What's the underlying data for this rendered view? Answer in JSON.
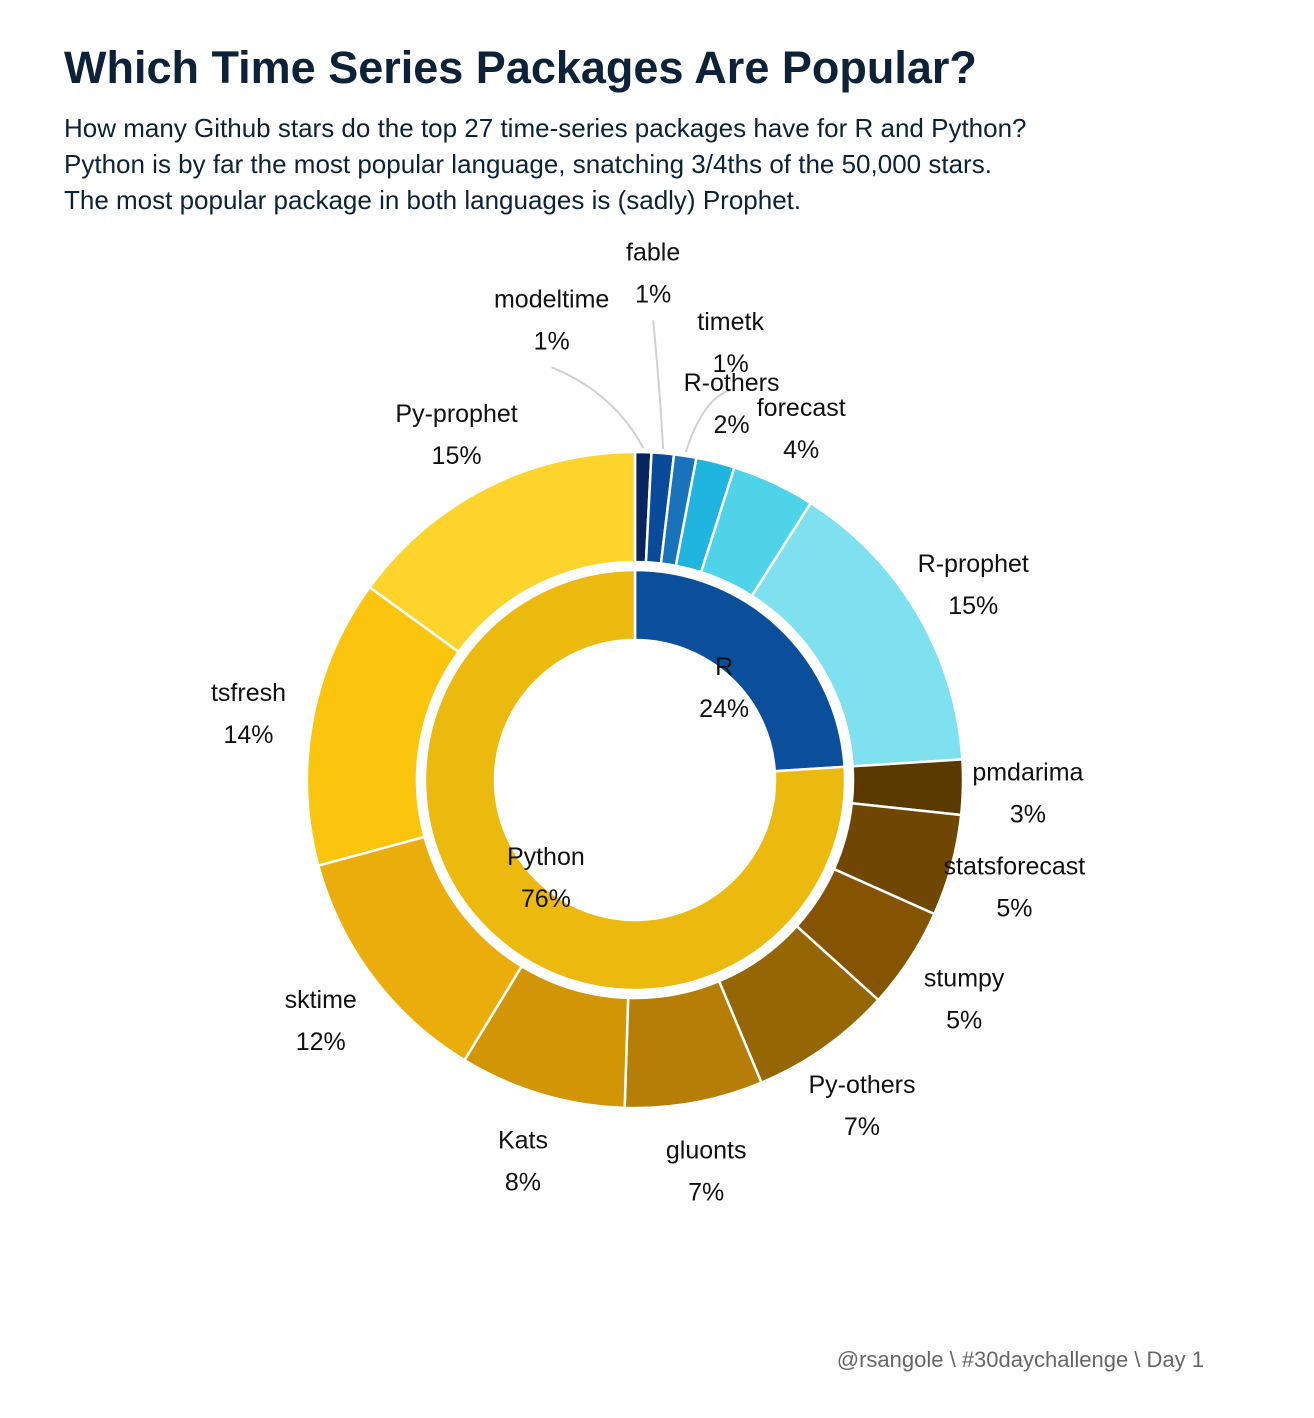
{
  "title": "Which Time Series Packages Are Popular?",
  "subtitle": [
    "How many Github stars do the top 27 time-series packages have for R and Python?",
    "Python is by far the most popular language, snatching 3/4ths of the 50,000 stars.",
    "The most popular package in both languages is (sadly) Prophet."
  ],
  "caption": "@rsangole \\ #30daychallenge \\ Day 1",
  "chart_data": {
    "type": "pie",
    "subtype": "nested donut (sunburst)",
    "inner_ring": [
      {
        "label": "R",
        "pct_label": "24%",
        "value": 24,
        "color": "#0b4f9c"
      },
      {
        "label": "Python",
        "pct_label": "76%",
        "value": 76,
        "color": "#ecb90f"
      }
    ],
    "outer_ring": [
      {
        "label": "modeltime",
        "pct_label": "1%",
        "value": 0.8,
        "parent": "R",
        "color": "#08245e"
      },
      {
        "label": "fable",
        "pct_label": "1%",
        "value": 1.1,
        "parent": "R",
        "color": "#0a4a9a"
      },
      {
        "label": "timetk",
        "pct_label": "1%",
        "value": 1.1,
        "parent": "R",
        "color": "#1873bb"
      },
      {
        "label": "R-others",
        "pct_label": "2%",
        "value": 1.9,
        "parent": "R",
        "color": "#1fb5de"
      },
      {
        "label": "forecast",
        "pct_label": "4%",
        "value": 4.1,
        "parent": "R",
        "color": "#4ed3e8"
      },
      {
        "label": "R-prophet",
        "pct_label": "15%",
        "value": 15.0,
        "parent": "R",
        "color": "#7fe0ef"
      },
      {
        "label": "pmdarima",
        "pct_label": "3%",
        "value": 2.7,
        "parent": "Python",
        "color": "#5b3a02"
      },
      {
        "label": "statsforecast",
        "pct_label": "5%",
        "value": 5.0,
        "parent": "Python",
        "color": "#704702"
      },
      {
        "label": "stumpy",
        "pct_label": "5%",
        "value": 5.0,
        "parent": "Python",
        "color": "#845403"
      },
      {
        "label": "Py-others",
        "pct_label": "7%",
        "value": 7.0,
        "parent": "Python",
        "color": "#956604"
      },
      {
        "label": "gluonts",
        "pct_label": "7%",
        "value": 6.8,
        "parent": "Python",
        "color": "#b67e07"
      },
      {
        "label": "Kats",
        "pct_label": "8%",
        "value": 8.2,
        "parent": "Python",
        "color": "#d29506"
      },
      {
        "label": "sktime",
        "pct_label": "12%",
        "value": 12.1,
        "parent": "Python",
        "color": "#ebad0b"
      },
      {
        "label": "tsfresh",
        "pct_label": "14%",
        "value": 14.2,
        "parent": "Python",
        "color": "#fcc50d"
      },
      {
        "label": "Py-prophet",
        "pct_label": "15%",
        "value": 15.0,
        "parent": "Python",
        "color": "#fcd42c"
      }
    ],
    "legend": "none"
  }
}
